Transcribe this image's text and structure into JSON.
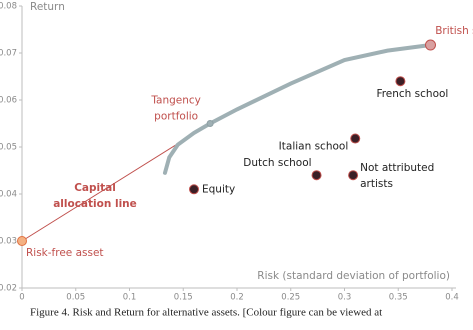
{
  "chart_data": {
    "type": "scatter",
    "y_label": "Return",
    "x_label": "Risk (standard deviation of portfolio)",
    "caption": "Figure 4.   Risk and Return for alternative assets. [Colour figure can be viewed at",
    "xlim": [
      0,
      0.4
    ],
    "ylim": [
      0.02,
      0.08
    ],
    "xticks": [
      0,
      0.05,
      0.1,
      0.15,
      0.2,
      0.25,
      0.3,
      0.35,
      0.4
    ],
    "yticks": [
      0.02,
      0.03,
      0.04,
      0.05,
      0.06,
      0.07,
      0.08
    ],
    "grid": false,
    "points": [
      {
        "label": [
          "Equity"
        ],
        "x": 0.16,
        "y": 0.041,
        "color": "#3b1f26",
        "label_color": "#222222"
      },
      {
        "label": [
          "Dutch school"
        ],
        "x": 0.274,
        "y": 0.044,
        "color": "#3b1f26",
        "label_color": "#222222"
      },
      {
        "label": [
          "Italian school"
        ],
        "x": 0.31,
        "y": 0.0518,
        "color": "#3b1f26",
        "label_color": "#222222"
      },
      {
        "label": [
          "Not attributed",
          "artists"
        ],
        "x": 0.308,
        "y": 0.044,
        "color": "#3b1f26",
        "label_color": "#222222"
      },
      {
        "label": [
          "French school"
        ],
        "x": 0.352,
        "y": 0.064,
        "color": "#3b1f26",
        "label_color": "#222222"
      },
      {
        "label": [
          "British school"
        ],
        "x": 0.38,
        "y": 0.0717,
        "color": "#d9a0a0",
        "label_color": "#c0504d"
      },
      {
        "label": [
          "Risk-free asset"
        ],
        "x": 0,
        "y": 0.03,
        "color": "#f4b183",
        "label_color": "#c0504d"
      },
      {
        "label": [
          "Tangency",
          "portfolio"
        ],
        "x": 0.175,
        "y": 0.055,
        "color": "#9fb0b4",
        "label_color": "#c0504d"
      }
    ],
    "frontier": {
      "color": "#9fb0b4",
      "x": [
        0.133,
        0.137,
        0.145,
        0.16,
        0.175,
        0.2,
        0.25,
        0.3,
        0.34,
        0.38
      ],
      "y": [
        0.0445,
        0.0478,
        0.0505,
        0.053,
        0.055,
        0.058,
        0.0635,
        0.0685,
        0.0705,
        0.0717
      ]
    },
    "allocation_line": {
      "label": [
        "Capital",
        "allocation line"
      ],
      "color": "#c0504d",
      "x": [
        0,
        0.175
      ],
      "y": [
        0.03,
        0.055
      ]
    }
  }
}
